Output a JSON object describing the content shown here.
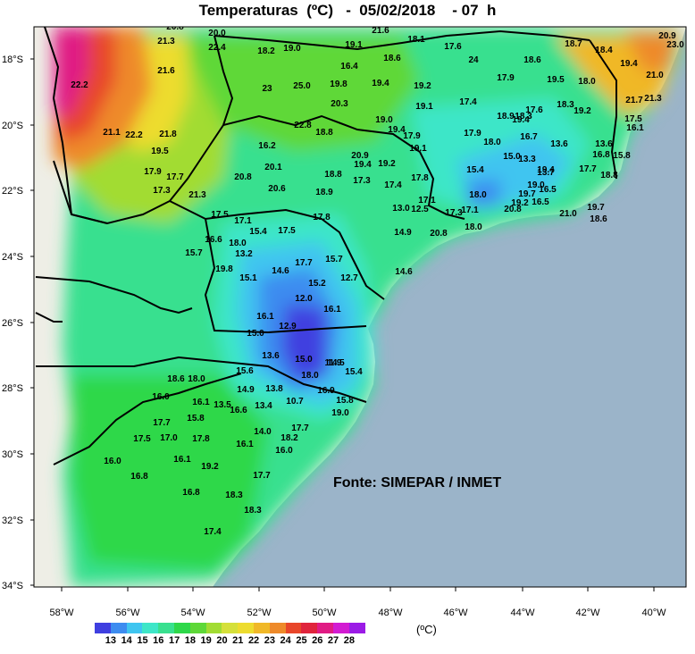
{
  "title": "Temperaturas  (ºC)   -  05/02/2018    - 07  h",
  "credit": "Fonte: SIMEPAR / INMET",
  "legend_unit": "(ºC)",
  "legend_ticks": [
    "13",
    "14",
    "15",
    "16",
    "17",
    "18",
    "19",
    "20",
    "21",
    "22",
    "23",
    "24",
    "25",
    "26",
    "27",
    "28"
  ],
  "legend_colors": [
    "#3f3fe0",
    "#3d8cf0",
    "#3fc5f0",
    "#3ee6c8",
    "#39e08f",
    "#2ed84a",
    "#5ed838",
    "#a2dc33",
    "#d5e03a",
    "#eddc2f",
    "#f0b828",
    "#ee8a2a",
    "#e8462a",
    "#e0243c",
    "#e01b84",
    "#d21bd2",
    "#9b1be6"
  ],
  "y_labels": [
    "18°S",
    "20°S",
    "22°S",
    "24°S",
    "26°S",
    "28°S",
    "30°S",
    "32°S",
    "34°S"
  ],
  "x_labels": [
    "58°W",
    "56°W",
    "54°W",
    "52°W",
    "50°W",
    "48°W",
    "46°W",
    "44°W",
    "42°W",
    "40°W"
  ],
  "values": [
    "20.8",
    "21.3",
    "20.0",
    "21.6",
    "18.1",
    "19.0",
    "18.2",
    "19.1",
    "17.6",
    "18.7",
    "18.4",
    "20.9",
    "23.0",
    "24",
    "18.6",
    "18.6",
    "16.4",
    "19.4",
    "22.4",
    "22.2",
    "21.6",
    "25.0",
    "19.8",
    "19.4",
    "19.2",
    "17.9",
    "19.5",
    "18.0",
    "21.0",
    "23",
    "20.3",
    "19.1",
    "17.4",
    "18.3",
    "19.2",
    "21.7",
    "21.3",
    "21.1",
    "22.2",
    "21.8",
    "22.8",
    "18.8",
    "19.0",
    "19.4",
    "18.9",
    "18.3",
    "17.5",
    "17.6",
    "16.1",
    "19.4",
    "17.9",
    "16.2",
    "20.9",
    "19.1",
    "17.9",
    "18.0",
    "16.7",
    "13.6",
    "13.6",
    "17.7",
    "19.4",
    "19.2",
    "16.8",
    "15.0",
    "13.3",
    "15.8",
    "19.5",
    "17.9",
    "17.7",
    "20.1",
    "18.8",
    "17.3",
    "17.4",
    "17.8",
    "15.4",
    "19.4",
    "18.8",
    "17.3",
    "21.3",
    "20.8",
    "20.6",
    "18.9",
    "17.1",
    "18.0",
    "13.7",
    "19.7",
    "16.5",
    "19.0",
    "19.2",
    "16.5",
    "17.5",
    "17.1",
    "15.4",
    "17.5",
    "17.8",
    "13.0",
    "12.5",
    "17.3",
    "17.1",
    "20.8",
    "21.0",
    "19.7",
    "18.6",
    "16.6",
    "18.0",
    "14.9",
    "20.8",
    "18.0",
    "15.7",
    "13.2",
    "15.7",
    "17.7",
    "14.6",
    "19.8",
    "14.6",
    "15.1",
    "15.2",
    "12.7",
    "12.0",
    "16.1",
    "16.1",
    "12.9",
    "15.0",
    "14.5",
    "13.6",
    "15.0",
    "11.9",
    "15.4",
    "15.6",
    "14.9",
    "13.8",
    "18.0",
    "18.6",
    "18.0",
    "16.0",
    "16.1",
    "13.5",
    "13.4",
    "10.7",
    "16.9",
    "15.8",
    "16.6",
    "17.7",
    "15.8",
    "14.0",
    "17.7",
    "19.0",
    "17.5",
    "17.0",
    "17.8",
    "16.1",
    "18.2",
    "16.1",
    "19.2",
    "16.0",
    "16.8",
    "17.7",
    "16.8",
    "18.3",
    "17.4",
    "16.0",
    "18.3"
  ],
  "colors": {
    "ocean": "#9bb4c9",
    "land": "#eeeee6"
  }
}
